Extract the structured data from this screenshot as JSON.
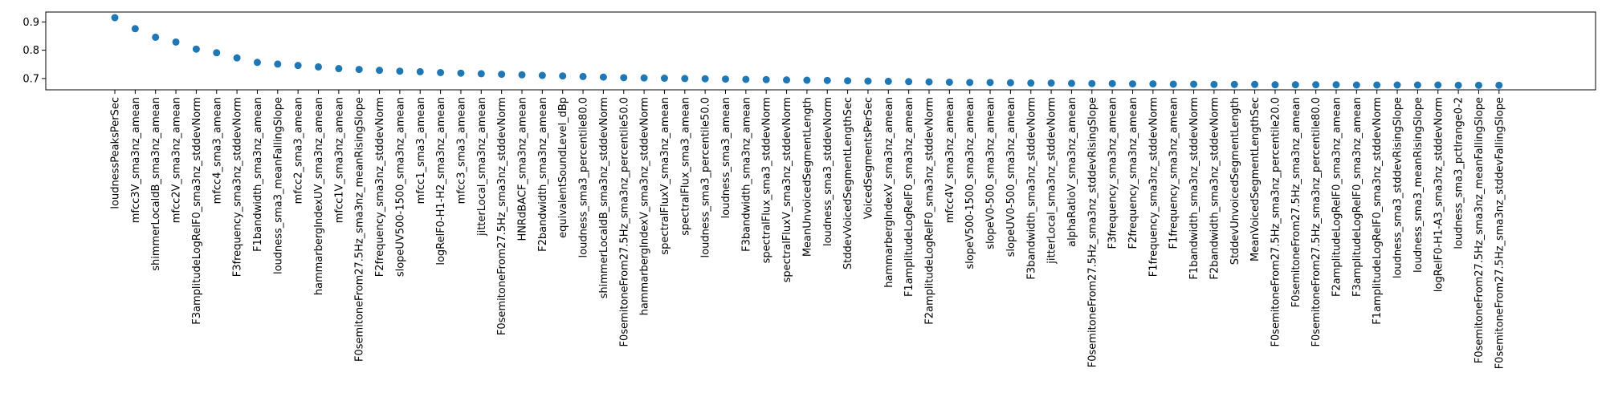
{
  "chart_data": {
    "type": "scatter",
    "title": "",
    "xlabel": "",
    "ylabel": "",
    "ylim": [
      0.66,
      0.935
    ],
    "yticks": [
      0.7,
      0.8,
      0.9
    ],
    "ytick_labels": [
      "0.7",
      "0.8",
      "0.9"
    ],
    "grid": false,
    "marker_color": "#1f77b4",
    "categories": [
      "loudnessPeaksPerSec",
      "mfcc3V_sma3nz_amean",
      "shimmerLocaldB_sma3nz_amean",
      "mfcc2V_sma3nz_amean",
      "F3amplitudeLogRelF0_sma3nz_stddevNorm",
      "mfcc4_sma3_amean",
      "F3frequency_sma3nz_stddevNorm",
      "F1bandwidth_sma3nz_amean",
      "loudness_sma3_meanFallingSlope",
      "mfcc2_sma3_amean",
      "hammarbergIndexUV_sma3nz_amean",
      "mfcc1V_sma3nz_amean",
      "F0semitoneFrom27.5Hz_sma3nz_meanRisingSlope",
      "F2frequency_sma3nz_stddevNorm",
      "slopeUV500-1500_sma3nz_amean",
      "mfcc1_sma3_amean",
      "logRelF0-H1-H2_sma3nz_amean",
      "mfcc3_sma3_amean",
      "jitterLocal_sma3nz_amean",
      "F0semitoneFrom27.5Hz_sma3nz_stddevNorm",
      "HNRdBACF_sma3nz_amean",
      "F2bandwidth_sma3nz_amean",
      "equivalentSoundLevel_dBp",
      "loudness_sma3_percentile80.0",
      "shimmerLocaldB_sma3nz_stddevNorm",
      "F0semitoneFrom27.5Hz_sma3nz_percentile50.0",
      "hammarbergIndexV_sma3nz_stddevNorm",
      "spectralFluxV_sma3nz_amean",
      "spectralFlux_sma3_amean",
      "loudness_sma3_percentile50.0",
      "loudness_sma3_amean",
      "F3bandwidth_sma3nz_amean",
      "spectralFlux_sma3_stddevNorm",
      "spectralFluxV_sma3nz_stddevNorm",
      "MeanUnvoicedSegmentLength",
      "loudness_sma3_stddevNorm",
      "StddevVoicedSegmentLengthSec",
      "VoicedSegmentsPerSec",
      "hammarbergIndexV_sma3nz_amean",
      "F1amplitudeLogRelF0_sma3nz_amean",
      "F2amplitudeLogRelF0_sma3nz_stddevNorm",
      "mfcc4V_sma3nz_amean",
      "slopeV500-1500_sma3nz_amean",
      "slopeV0-500_sma3nz_amean",
      "slopeUV0-500_sma3nz_amean",
      "F3bandwidth_sma3nz_stddevNorm",
      "jitterLocal_sma3nz_stddevNorm",
      "alphaRatioV_sma3nz_amean",
      "F0semitoneFrom27.5Hz_sma3nz_stddevRisingSlope",
      "F3frequency_sma3nz_amean",
      "F2frequency_sma3nz_amean",
      "F1frequency_sma3nz_stddevNorm",
      "F1frequency_sma3nz_amean",
      "F1bandwidth_sma3nz_stddevNorm",
      "F2bandwidth_sma3nz_stddevNorm",
      "StddevUnvoicedSegmentLength",
      "MeanVoicedSegmentLengthSec",
      "F0semitoneFrom27.5Hz_sma3nz_percentile20.0",
      "F0semitoneFrom27.5Hz_sma3nz_amean",
      "F0semitoneFrom27.5Hz_sma3nz_percentile80.0",
      "F2amplitudeLogRelF0_sma3nz_amean",
      "F3amplitudeLogRelF0_sma3nz_amean",
      "F1amplitudeLogRelF0_sma3nz_stddevNorm",
      "loudness_sma3_stddevRisingSlope",
      "loudness_sma3_meanRisingSlope",
      "logRelF0-H1-A3_sma3nz_stddevNorm",
      "loudness_sma3_pctlrange0-2",
      "F0semitoneFrom27.5Hz_sma3nz_meanFallingSlope",
      "F0semitoneFrom27.5Hz_sma3nz_stddevFallingSlope"
    ],
    "values": [
      0.915,
      0.876,
      0.846,
      0.829,
      0.804,
      0.791,
      0.773,
      0.757,
      0.751,
      0.746,
      0.741,
      0.735,
      0.732,
      0.729,
      0.726,
      0.724,
      0.721,
      0.719,
      0.717,
      0.715,
      0.713,
      0.711,
      0.709,
      0.707,
      0.705,
      0.703,
      0.702,
      0.701,
      0.7,
      0.699,
      0.698,
      0.697,
      0.696,
      0.695,
      0.694,
      0.693,
      0.692,
      0.691,
      0.69,
      0.689,
      0.688,
      0.687,
      0.686,
      0.686,
      0.685,
      0.684,
      0.684,
      0.683,
      0.682,
      0.682,
      0.681,
      0.681,
      0.68,
      0.68,
      0.679,
      0.679,
      0.679,
      0.678,
      0.678,
      0.678,
      0.678,
      0.677,
      0.677,
      0.677,
      0.677,
      0.677,
      0.676,
      0.676,
      0.676
    ]
  }
}
